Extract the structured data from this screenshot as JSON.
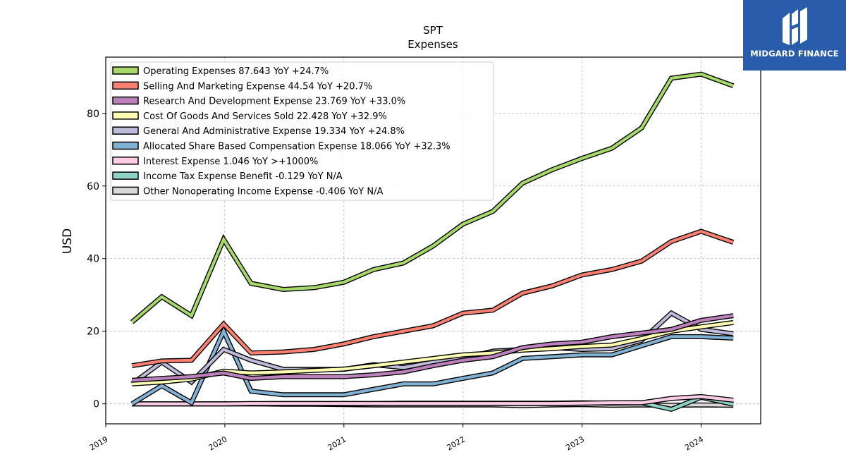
{
  "logo": {
    "name": "MIDGARD FINANCE"
  },
  "chart_data": {
    "type": "line",
    "title": "SPT",
    "subtitle": "Expenses",
    "ylabel": "USD",
    "xlabel": "",
    "xlim": [
      2019.0,
      2024.5
    ],
    "ylim": [
      -5.5,
      95.5
    ],
    "yticks": [
      0,
      20,
      40,
      60,
      80
    ],
    "xticks": [
      2019,
      2020,
      2021,
      2022,
      2023,
      2024
    ],
    "grid": true,
    "legend_position": "top-left",
    "x": [
      2019.22,
      2019.47,
      2019.72,
      2019.99,
      2020.22,
      2020.49,
      2020.75,
      2021.0,
      2021.25,
      2021.5,
      2021.75,
      2022.0,
      2022.25,
      2022.5,
      2022.75,
      2023.0,
      2023.25,
      2023.5,
      2023.75,
      2024.0,
      2024.27
    ],
    "series": [
      {
        "name": "Operating Expenses",
        "legend": "Operating Expenses  87.643 YoY +24.7%",
        "color": "#a6d96a",
        "values": [
          22.5,
          29.5,
          24.3,
          45.3,
          33.2,
          31.5,
          32.0,
          33.5,
          37.0,
          38.8,
          43.5,
          49.5,
          53.0,
          60.8,
          64.5,
          67.6,
          70.4,
          76.0,
          89.7,
          90.8,
          87.6
        ]
      },
      {
        "name": "Selling And Marketing Expense",
        "legend": "Selling And Marketing Expense  44.54 YoY +20.7%",
        "color": "#fb8072",
        "values": [
          10.5,
          11.8,
          12.0,
          22.0,
          14.0,
          14.3,
          15.0,
          16.5,
          18.5,
          20.0,
          21.5,
          25.0,
          25.8,
          30.5,
          32.5,
          35.5,
          37.0,
          39.3,
          44.7,
          47.5,
          44.5
        ]
      },
      {
        "name": "Research And Development Expense",
        "legend": "Research And Development Expense  23.769 YoY +33.0%",
        "color": "#bc80bd",
        "values": [
          6.5,
          7.0,
          7.5,
          8.5,
          7.0,
          7.5,
          7.5,
          7.5,
          8.0,
          8.8,
          10.5,
          12.0,
          13.0,
          15.5,
          16.5,
          17.0,
          18.5,
          19.5,
          20.5,
          23.0,
          24.3
        ]
      },
      {
        "name": "Cost Of Goods And Services Sold",
        "legend": "Cost Of Goods And Services Sold  22.428 YoY +32.9%",
        "color": "#ffffb3",
        "values": [
          5.5,
          6.0,
          6.8,
          9.0,
          8.5,
          8.8,
          9.2,
          9.6,
          10.5,
          11.5,
          12.5,
          13.5,
          14.0,
          14.8,
          15.2,
          15.8,
          16.2,
          18.0,
          20.0,
          21.2,
          22.4
        ]
      },
      {
        "name": "General And Administrative Expense",
        "legend": "General And Administrative Expense  19.334 YoY +24.8%",
        "color": "#bebada",
        "values": [
          5.5,
          11.5,
          6.0,
          15.0,
          12.0,
          9.5,
          9.5,
          9.5,
          10.8,
          10.0,
          11.5,
          12.5,
          14.5,
          15.0,
          15.5,
          15.0,
          15.2,
          17.5,
          25.0,
          20.5,
          19.3
        ]
      },
      {
        "name": "Allocated Share Based Compensation Expense",
        "legend": "Allocated Share Based Compensation Expense  18.066 YoY +32.3%",
        "color": "#80b1d3",
        "values": [
          0.0,
          5.0,
          0.3,
          20.0,
          3.5,
          2.5,
          2.5,
          2.5,
          4.0,
          5.5,
          5.5,
          7.0,
          8.5,
          12.5,
          13.0,
          13.5,
          13.5,
          16.0,
          18.5,
          18.5,
          18.1
        ]
      },
      {
        "name": "Interest Expense",
        "legend": "Interest Expense  1.046 YoY >+1000%",
        "color": "#fccde5",
        "values": [
          0.0,
          0.0,
          0.0,
          0.0,
          0.1,
          0.1,
          0.1,
          0.1,
          0.1,
          0.1,
          0.1,
          0.1,
          0.1,
          0.1,
          0.1,
          0.2,
          0.3,
          0.3,
          1.5,
          2.0,
          1.0
        ]
      },
      {
        "name": "Income Tax Expense Benefit",
        "legend": "Income Tax Expense Benefit  -0.129 YoY N/A",
        "color": "#8dd3c7",
        "values": [
          0.0,
          0.0,
          0.0,
          0.0,
          0.0,
          0.1,
          0.1,
          0.1,
          0.1,
          0.2,
          0.2,
          0.2,
          0.2,
          0.2,
          0.2,
          0.3,
          0.2,
          0.3,
          -1.5,
          1.8,
          -0.1
        ]
      },
      {
        "name": "Other Nonoperating Income Expense",
        "legend": "Other Nonoperating Income Expense  -0.406 YoY N/A",
        "color": "#d9d9d9",
        "values": [
          0.0,
          0.0,
          0.0,
          0.0,
          0.0,
          -0.1,
          -0.1,
          -0.2,
          -0.3,
          -0.3,
          -0.3,
          -0.3,
          -0.3,
          -0.5,
          -0.3,
          -0.2,
          -0.4,
          -0.3,
          -0.4,
          -0.3,
          -0.4
        ]
      }
    ]
  }
}
